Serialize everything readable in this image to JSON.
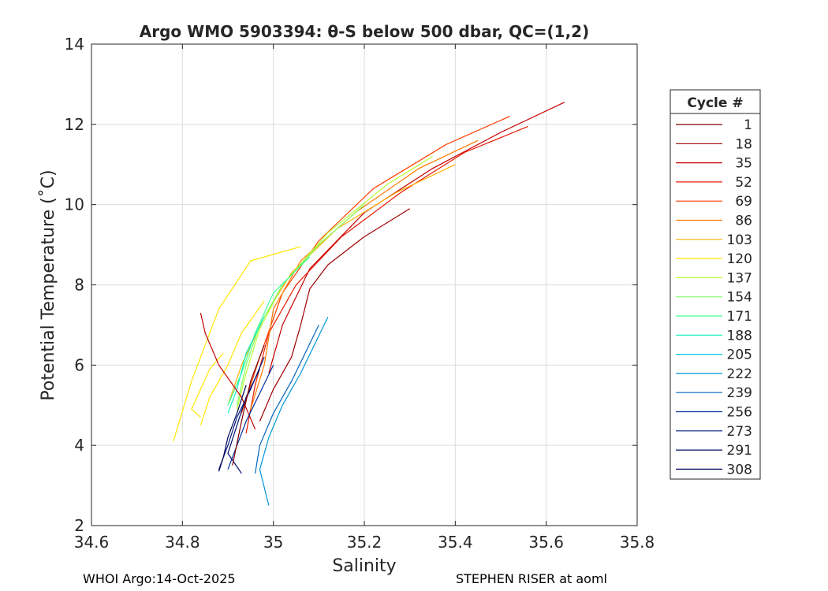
{
  "chart_data": {
    "type": "line",
    "title": "Argo WMO 5903394: θ-S below 500 dbar,  QC=(1,2)",
    "xlabel": "Salinity",
    "ylabel": "Potential Temperature (˚C)",
    "xlim": [
      34.6,
      35.8
    ],
    "ylim": [
      2,
      14
    ],
    "xticks": [
      "34.6",
      "34.8",
      "35",
      "35.2",
      "35.4",
      "35.6",
      "35.8"
    ],
    "yticks": [
      "2",
      "4",
      "6",
      "8",
      "10",
      "12",
      "14"
    ],
    "grid": true,
    "legend": {
      "title": "Cycle #",
      "placement": "outside-right",
      "entries": [
        {
          "label": "1",
          "color": "#800000"
        },
        {
          "label": "18",
          "color": "#a00000"
        },
        {
          "label": "35",
          "color": "#c80000"
        },
        {
          "label": "52",
          "color": "#e61a00"
        },
        {
          "label": "69",
          "color": "#ff4000"
        },
        {
          "label": "86",
          "color": "#ff7a00"
        },
        {
          "label": "103",
          "color": "#ffb000"
        },
        {
          "label": "120",
          "color": "#ffe600"
        },
        {
          "label": "137",
          "color": "#b8ff30"
        },
        {
          "label": "154",
          "color": "#80ff66"
        },
        {
          "label": "171",
          "color": "#40ff99"
        },
        {
          "label": "188",
          "color": "#10f0c0"
        },
        {
          "label": "205",
          "color": "#00c8e6"
        },
        {
          "label": "222",
          "color": "#0096d8"
        },
        {
          "label": "239",
          "color": "#0064c0"
        },
        {
          "label": "256",
          "color": "#0030a0"
        },
        {
          "label": "273",
          "color": "#001a80"
        },
        {
          "label": "291",
          "color": "#000f6a"
        },
        {
          "label": "308",
          "color": "#000858"
        }
      ]
    },
    "series": [
      {
        "color": "#c80000",
        "x": [
          35.64,
          35.5,
          35.35,
          35.2,
          35.08,
          35.02,
          34.99
        ],
        "y": [
          12.55,
          11.8,
          10.9,
          9.8,
          8.4,
          7.0,
          5.8
        ]
      },
      {
        "color": "#e61a00",
        "x": [
          35.56,
          35.42,
          35.28,
          35.15,
          35.05,
          34.99,
          34.96,
          34.94
        ],
        "y": [
          11.95,
          11.3,
          10.3,
          9.2,
          8.0,
          6.8,
          5.5,
          4.3
        ]
      },
      {
        "color": "#ff4000",
        "x": [
          35.52,
          35.38,
          35.22,
          35.1,
          35.02,
          34.97,
          34.93
        ],
        "y": [
          12.2,
          11.5,
          10.4,
          9.1,
          7.8,
          6.2,
          4.8
        ]
      },
      {
        "color": "#a00000",
        "x": [
          35.3,
          35.2,
          35.12,
          35.08,
          35.06,
          35.04,
          35.0,
          34.97
        ],
        "y": [
          9.9,
          9.2,
          8.5,
          7.9,
          7.0,
          6.2,
          5.4,
          4.6
        ]
      },
      {
        "color": "#ff7a00",
        "x": [
          35.45,
          35.32,
          35.18,
          35.06,
          35.0,
          34.98,
          34.95
        ],
        "y": [
          11.6,
          10.9,
          9.8,
          8.6,
          7.4,
          6.0,
          4.9
        ]
      },
      {
        "color": "#ffb000",
        "x": [
          35.4,
          35.27,
          35.14,
          35.04,
          34.98,
          34.93,
          34.9
        ],
        "y": [
          11.0,
          10.3,
          9.4,
          8.3,
          7.2,
          6.0,
          5.0
        ]
      },
      {
        "color": "#ffe600",
        "x": [
          35.06,
          34.95,
          34.88,
          34.82,
          34.78
        ],
        "y": [
          8.95,
          8.6,
          7.4,
          5.6,
          4.1
        ]
      },
      {
        "color": "#ffe600",
        "x": [
          34.98,
          34.93,
          34.9,
          34.86,
          34.84
        ],
        "y": [
          7.6,
          6.8,
          6.0,
          5.2,
          4.5
        ]
      },
      {
        "color": "#ffe600",
        "x": [
          34.89,
          34.86,
          34.84,
          34.82,
          34.84
        ],
        "y": [
          6.3,
          5.9,
          5.4,
          4.9,
          4.7
        ]
      },
      {
        "color": "#b8ff30",
        "x": [
          35.35,
          35.25,
          35.12,
          35.02,
          34.97,
          34.94,
          34.92
        ],
        "y": [
          11.2,
          10.5,
          9.3,
          8.0,
          6.9,
          5.8,
          4.9
        ]
      },
      {
        "color": "#80ff66",
        "x": [
          35.2,
          35.1,
          35.02,
          34.97,
          34.94,
          34.92
        ],
        "y": [
          10.0,
          9.0,
          8.0,
          7.0,
          6.0,
          5.0
        ]
      },
      {
        "color": "#40ff99",
        "x": [
          35.08,
          35.0,
          34.96,
          34.93,
          34.9
        ],
        "y": [
          8.7,
          7.8,
          6.8,
          5.8,
          5.0
        ]
      },
      {
        "color": "#10f0c0",
        "x": [
          34.98,
          34.94,
          34.92,
          34.9
        ],
        "y": [
          7.2,
          6.3,
          5.4,
          4.8
        ]
      },
      {
        "color": "#c80000",
        "x": [
          34.84,
          34.85,
          34.88,
          34.93,
          34.96
        ],
        "y": [
          7.3,
          6.8,
          6.0,
          5.2,
          4.4
        ]
      },
      {
        "color": "#0096d8",
        "x": [
          35.12,
          35.09,
          35.06,
          35.02,
          34.99,
          34.97,
          34.99
        ],
        "y": [
          7.2,
          6.5,
          5.8,
          5.0,
          4.2,
          3.4,
          2.5
        ]
      },
      {
        "color": "#0064c0",
        "x": [
          35.1,
          35.07,
          35.04,
          35.0,
          34.97,
          34.96
        ],
        "y": [
          7.0,
          6.3,
          5.6,
          4.8,
          4.0,
          3.3
        ]
      },
      {
        "color": "#0030a0",
        "x": [
          35.0,
          34.97,
          34.94,
          34.92,
          34.9
        ],
        "y": [
          6.0,
          5.3,
          4.6,
          4.0,
          3.4
        ]
      },
      {
        "color": "#001a80",
        "x": [
          34.98,
          34.95,
          34.92,
          34.9,
          34.88
        ],
        "y": [
          6.2,
          5.4,
          4.7,
          4.0,
          3.4
        ]
      },
      {
        "color": "#000858",
        "x": [
          34.94,
          34.92,
          34.9,
          34.89,
          34.88
        ],
        "y": [
          5.5,
          4.8,
          4.2,
          3.7,
          3.35
        ]
      },
      {
        "color": "#000f6a",
        "x": [
          34.97,
          34.94,
          34.92,
          34.9,
          34.93
        ],
        "y": [
          5.9,
          5.2,
          4.5,
          3.8,
          3.3
        ]
      },
      {
        "color": "#800000",
        "x": [
          34.98,
          34.95,
          34.93,
          34.91
        ],
        "y": [
          6.5,
          5.6,
          4.6,
          3.5
        ]
      }
    ]
  },
  "footer": {
    "left": "WHOI Argo:14-Oct-2025",
    "right": "STEPHEN RISER at aoml"
  }
}
